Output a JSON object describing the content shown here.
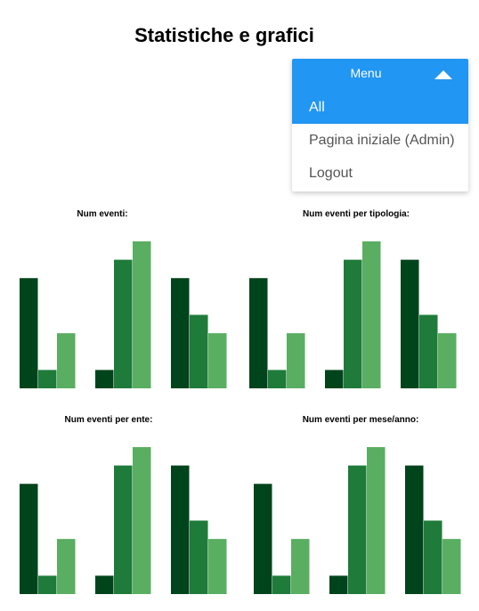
{
  "page": {
    "title": "Statistiche e grafici"
  },
  "menu": {
    "label": "Menu",
    "items": [
      {
        "label": "All",
        "active": true
      },
      {
        "label": "Pagina iniziale (Admin)",
        "active": false
      },
      {
        "label": "Logout",
        "active": false
      }
    ]
  },
  "colors": {
    "dark": "#00441b",
    "medium": "#1e7b3a",
    "light": "#5aae61",
    "menu_accent": "#2196f3"
  },
  "chart_data": [
    {
      "type": "bar",
      "title": "Num eventi:",
      "categories": [
        "",
        "",
        ""
      ],
      "series": [
        {
          "values": [
            6,
            1,
            6
          ]
        },
        {
          "values": [
            1,
            7,
            4
          ]
        },
        {
          "values": [
            3,
            8,
            3
          ]
        }
      ],
      "ylim": [
        0,
        8
      ]
    },
    {
      "type": "bar",
      "title": "Num eventi per tipologia:",
      "categories": [
        "",
        "",
        ""
      ],
      "series": [
        {
          "values": [
            6,
            1,
            7
          ]
        },
        {
          "values": [
            1,
            7,
            4
          ]
        },
        {
          "values": [
            3,
            8,
            3
          ]
        }
      ],
      "ylim": [
        0,
        8
      ]
    },
    {
      "type": "bar",
      "title": "Num eventi per ente:",
      "categories": [
        "",
        "",
        ""
      ],
      "series": [
        {
          "values": [
            6,
            1,
            7
          ]
        },
        {
          "values": [
            1,
            7,
            4
          ]
        },
        {
          "values": [
            3,
            8,
            3
          ]
        }
      ],
      "ylim": [
        0,
        8
      ]
    },
    {
      "type": "bar",
      "title": "Num eventi per mese/anno:",
      "categories": [
        "",
        "",
        ""
      ],
      "series": [
        {
          "values": [
            6,
            1,
            7
          ]
        },
        {
          "values": [
            1,
            7,
            4
          ]
        },
        {
          "values": [
            3,
            8,
            3
          ]
        }
      ],
      "ylim": [
        0,
        8
      ]
    }
  ]
}
